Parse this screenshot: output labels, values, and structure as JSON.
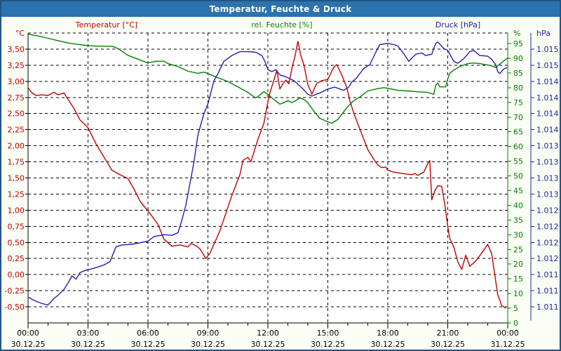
{
  "window": {
    "title": "Temperatur, Feuchte & Druck"
  },
  "header": {
    "temperature_label": "Temperatur [°C]",
    "humidity_label": "rel. Feuchte [%]",
    "pressure_label": "Druck [hPa]"
  },
  "colors": {
    "titlebar_bg": "#2c72ac",
    "titlebar_text": "#ffffff",
    "frame": "#215481",
    "page_bg": "#fbfef4",
    "plot_bg": "#ffffff",
    "grid": "#000000",
    "temperature": "#c00000",
    "humidity": "#008000",
    "pressure": "#2020b0",
    "tick_text": "#000000"
  },
  "chart_data": {
    "type": "line",
    "title": "Temperatur, Feuchte & Druck",
    "grid": {
      "style": "dashed",
      "horizontal_step_c": 0.25,
      "vertical_step_hours": 3
    },
    "x_axis": {
      "hours_span": [
        0,
        24
      ],
      "major_tick_every_hours": 3,
      "minor_tick_every_hours": 1,
      "ticks": [
        {
          "time": "00:00",
          "date": "30.12.25"
        },
        {
          "time": "03:00",
          "date": "30.12.25"
        },
        {
          "time": "06:00",
          "date": "30.12.25"
        },
        {
          "time": "09:00",
          "date": "30.12.25"
        },
        {
          "time": "12:00",
          "date": "30.12.25"
        },
        {
          "time": "15:00",
          "date": "30.12.25"
        },
        {
          "time": "18:00",
          "date": "30.12.25"
        },
        {
          "time": "21:00",
          "date": "30.12.25"
        },
        {
          "time": "00:00",
          "date": "31.12.25"
        }
      ]
    },
    "axes": {
      "temperature": {
        "side": "left",
        "unit_label": "°C",
        "range": [
          -0.75,
          3.75
        ],
        "tick_labels": [
          "3,50",
          "3,25",
          "3,00",
          "2,75",
          "2,50",
          "2,25",
          "2,00",
          "1,75",
          "1,50",
          "1,25",
          "1,00",
          "0,75",
          "0,50",
          "0,25",
          "0,00",
          "-0,25",
          "-0,50"
        ],
        "tick_values": [
          3.5,
          3.25,
          3.0,
          2.75,
          2.5,
          2.25,
          2.0,
          1.75,
          1.5,
          1.25,
          1.0,
          0.75,
          0.5,
          0.25,
          0.0,
          -0.25,
          -0.5
        ]
      },
      "humidity": {
        "side": "right",
        "unit_label": "%",
        "range": [
          0,
          98.6
        ],
        "tick_labels": [
          "95",
          "90",
          "85",
          "80",
          "75",
          "70",
          "65",
          "60",
          "55",
          "50",
          "45",
          "40",
          "35",
          "30",
          "25",
          "20",
          "15",
          "10",
          "5",
          "0"
        ],
        "tick_values": [
          95,
          90,
          85,
          80,
          75,
          70,
          65,
          60,
          55,
          50,
          45,
          40,
          35,
          30,
          25,
          20,
          15,
          10,
          5,
          0
        ]
      },
      "pressure": {
        "side": "right-outer",
        "unit_label": "hPa",
        "range": [
          1011.2,
          1015.7
        ],
        "tick_labels": [
          "1.015",
          "1.015",
          "1.014",
          "1.014",
          "1.014",
          "1.014",
          "1.013",
          "1.013",
          "1.013",
          "1.013",
          "1.012",
          "1.012",
          "1.012",
          "1.012",
          "1.011",
          "1.011",
          "1.011"
        ]
      }
    },
    "series": [
      {
        "name": "Temperatur",
        "unit": "°C",
        "axis": "temperature",
        "color_key": "temperature",
        "points": [
          [
            0,
            2.9
          ],
          [
            0.2,
            2.82
          ],
          [
            0.4,
            2.78
          ],
          [
            0.7,
            2.79
          ],
          [
            1,
            2.78
          ],
          [
            1.3,
            2.83
          ],
          [
            1.5,
            2.79
          ],
          [
            1.8,
            2.82
          ],
          [
            2,
            2.72
          ],
          [
            2.3,
            2.58
          ],
          [
            2.6,
            2.4
          ],
          [
            3,
            2.28
          ],
          [
            3.4,
            2.03
          ],
          [
            3.9,
            1.77
          ],
          [
            4.2,
            1.62
          ],
          [
            4.6,
            1.55
          ],
          [
            5,
            1.49
          ],
          [
            5.3,
            1.33
          ],
          [
            5.6,
            1.14
          ],
          [
            6.1,
            0.95
          ],
          [
            6.5,
            0.78
          ],
          [
            6.8,
            0.55
          ],
          [
            7.2,
            0.44
          ],
          [
            7.6,
            0.46
          ],
          [
            8,
            0.43
          ],
          [
            8.15,
            0.48
          ],
          [
            8.4,
            0.45
          ],
          [
            8.6,
            0.4
          ],
          [
            8.9,
            0.25
          ],
          [
            9.1,
            0.33
          ],
          [
            9.6,
            0.68
          ],
          [
            10.2,
            1.23
          ],
          [
            10.6,
            1.55
          ],
          [
            10.75,
            1.77
          ],
          [
            11,
            1.82
          ],
          [
            11.15,
            1.75
          ],
          [
            11.5,
            2.1
          ],
          [
            11.8,
            2.35
          ],
          [
            11.95,
            2.6
          ],
          [
            12.1,
            2.82
          ],
          [
            12.3,
            3.02
          ],
          [
            12.45,
            3.17
          ],
          [
            12.6,
            2.88
          ],
          [
            12.75,
            2.96
          ],
          [
            12.9,
            3.02
          ],
          [
            13.05,
            2.96
          ],
          [
            13.2,
            3.2
          ],
          [
            13.35,
            3.38
          ],
          [
            13.5,
            3.62
          ],
          [
            13.65,
            3.4
          ],
          [
            13.8,
            3.26
          ],
          [
            14,
            2.95
          ],
          [
            14.2,
            2.8
          ],
          [
            14.45,
            2.97
          ],
          [
            14.7,
            3.01
          ],
          [
            15,
            3.03
          ],
          [
            15.3,
            3.22
          ],
          [
            15.45,
            3.26
          ],
          [
            15.7,
            3.1
          ],
          [
            15.95,
            2.9
          ],
          [
            16.1,
            2.7
          ],
          [
            16.3,
            2.5
          ],
          [
            16.55,
            2.3
          ],
          [
            16.8,
            2.1
          ],
          [
            17,
            1.94
          ],
          [
            17.3,
            1.79
          ],
          [
            17.5,
            1.7
          ],
          [
            17.7,
            1.66
          ],
          [
            17.9,
            1.67
          ],
          [
            18,
            1.62
          ],
          [
            18.3,
            1.59
          ],
          [
            18.7,
            1.57
          ],
          [
            19.2,
            1.55
          ],
          [
            19.35,
            1.57
          ],
          [
            19.5,
            1.54
          ],
          [
            19.8,
            1.59
          ],
          [
            20,
            1.72
          ],
          [
            20.1,
            1.77
          ],
          [
            20.2,
            1.16
          ],
          [
            20.35,
            1.3
          ],
          [
            20.5,
            1.38
          ],
          [
            20.7,
            1.37
          ],
          [
            20.85,
            1.1
          ],
          [
            21,
            0.75
          ],
          [
            21.1,
            0.56
          ],
          [
            21.3,
            0.43
          ],
          [
            21.5,
            0.2
          ],
          [
            21.7,
            0.08
          ],
          [
            21.9,
            0.3
          ],
          [
            22.1,
            0.13
          ],
          [
            22.3,
            0.18
          ],
          [
            22.5,
            0.25
          ],
          [
            22.8,
            0.38
          ],
          [
            23,
            0.47
          ],
          [
            23.2,
            0.32
          ],
          [
            23.35,
            0
          ],
          [
            23.5,
            -0.31
          ],
          [
            23.7,
            -0.48
          ],
          [
            23.9,
            -0.52
          ]
        ]
      },
      {
        "name": "rel. Feuchte",
        "unit": "%",
        "axis": "humidity",
        "color_key": "humidity",
        "points": [
          [
            0,
            98.2
          ],
          [
            0.5,
            97.6
          ],
          [
            1,
            96.8
          ],
          [
            1.5,
            96
          ],
          [
            2,
            95.2
          ],
          [
            2.5,
            94.7
          ],
          [
            3,
            94.3
          ],
          [
            3.5,
            94.1
          ],
          [
            4.2,
            94.1
          ],
          [
            4.5,
            93.3
          ],
          [
            5,
            91
          ],
          [
            5.5,
            89.7
          ],
          [
            6,
            88.4
          ],
          [
            6.4,
            89
          ],
          [
            6.8,
            89
          ],
          [
            7,
            88.2
          ],
          [
            7.5,
            87.2
          ],
          [
            8,
            85.6
          ],
          [
            8.5,
            84.9
          ],
          [
            8.8,
            85.3
          ],
          [
            9,
            84.8
          ],
          [
            9.5,
            83.4
          ],
          [
            10,
            82.1
          ],
          [
            10.5,
            80.3
          ],
          [
            11,
            78.4
          ],
          [
            11.2,
            77.4
          ],
          [
            11.4,
            76.5
          ],
          [
            11.6,
            77.5
          ],
          [
            11.8,
            78.7
          ],
          [
            12,
            77.7
          ],
          [
            12.3,
            76
          ],
          [
            12.6,
            74.4
          ],
          [
            12.8,
            74.9
          ],
          [
            13,
            75.6
          ],
          [
            13.2,
            74.9
          ],
          [
            13.4,
            75.6
          ],
          [
            13.6,
            76.6
          ],
          [
            13.8,
            76
          ],
          [
            14,
            74.9
          ],
          [
            14.3,
            72
          ],
          [
            14.6,
            69.6
          ],
          [
            15,
            68.4
          ],
          [
            15.2,
            67.9
          ],
          [
            15.5,
            69.2
          ],
          [
            16,
            73.6
          ],
          [
            16.3,
            75.6
          ],
          [
            16.6,
            76.8
          ],
          [
            17,
            78.9
          ],
          [
            17.5,
            79.7
          ],
          [
            17.8,
            80
          ],
          [
            18,
            79.8
          ],
          [
            18.5,
            79.1
          ],
          [
            19,
            78.9
          ],
          [
            19.5,
            78.6
          ],
          [
            20,
            78.4
          ],
          [
            20.3,
            77.7
          ],
          [
            20.4,
            80.8
          ],
          [
            20.5,
            81.6
          ],
          [
            20.6,
            80.3
          ],
          [
            20.9,
            80.3
          ],
          [
            21,
            83
          ],
          [
            21.1,
            84.9
          ],
          [
            21.3,
            86
          ],
          [
            21.6,
            87.2
          ],
          [
            22,
            88.2
          ],
          [
            22.3,
            88.4
          ],
          [
            22.6,
            88.2
          ],
          [
            23,
            87.7
          ],
          [
            23.2,
            87.4
          ],
          [
            23.4,
            86.8
          ],
          [
            23.6,
            88
          ],
          [
            23.8,
            89.1
          ],
          [
            24,
            90.1
          ]
        ]
      },
      {
        "name": "Druck",
        "unit": "hPa",
        "axis": "pressure",
        "color_key": "pressure",
        "points": [
          [
            0,
            1011.6
          ],
          [
            0.3,
            1011.55
          ],
          [
            0.7,
            1011.5
          ],
          [
            1,
            1011.48
          ],
          [
            1.3,
            1011.58
          ],
          [
            1.5,
            1011.63
          ],
          [
            1.8,
            1011.72
          ],
          [
            2,
            1011.82
          ],
          [
            2.2,
            1011.93
          ],
          [
            2.4,
            1011.88
          ],
          [
            2.6,
            1011.98
          ],
          [
            2.9,
            1012.02
          ],
          [
            3.2,
            1012.04
          ],
          [
            3.5,
            1012.07
          ],
          [
            3.8,
            1012.1
          ],
          [
            4.1,
            1012.15
          ],
          [
            4.4,
            1012.38
          ],
          [
            4.7,
            1012.41
          ],
          [
            5.2,
            1012.42
          ],
          [
            5.7,
            1012.45
          ],
          [
            6,
            1012.47
          ],
          [
            6.3,
            1012.54
          ],
          [
            6.8,
            1012.57
          ],
          [
            7.2,
            1012.56
          ],
          [
            7.5,
            1012.6
          ],
          [
            7.7,
            1012.8
          ],
          [
            7.9,
            1013.03
          ],
          [
            8.1,
            1013.36
          ],
          [
            8.3,
            1013.7
          ],
          [
            8.5,
            1014.12
          ],
          [
            8.8,
            1014.45
          ],
          [
            9,
            1014.6
          ],
          [
            9.3,
            1014.96
          ],
          [
            9.5,
            1015.07
          ],
          [
            9.8,
            1015.26
          ],
          [
            10.2,
            1015.35
          ],
          [
            10.6,
            1015.41
          ],
          [
            11,
            1015.41
          ],
          [
            11.4,
            1015.4
          ],
          [
            11.7,
            1015.35
          ],
          [
            11.85,
            1015.26
          ],
          [
            12,
            1015.13
          ],
          [
            12.2,
            1015.1
          ],
          [
            12.4,
            1015.13
          ],
          [
            12.6,
            1015.05
          ],
          [
            12.9,
            1015.02
          ],
          [
            13.3,
            1014.96
          ],
          [
            13.7,
            1014.85
          ],
          [
            14,
            1014.75
          ],
          [
            14.2,
            1014.72
          ],
          [
            14.6,
            1014.77
          ],
          [
            15,
            1014.83
          ],
          [
            15.35,
            1014.86
          ],
          [
            15.6,
            1014.83
          ],
          [
            15.8,
            1014.81
          ],
          [
            16.05,
            1014.86
          ],
          [
            16.2,
            1014.94
          ],
          [
            16.4,
            1014.99
          ],
          [
            16.8,
            1015.15
          ],
          [
            17.1,
            1015.21
          ],
          [
            17.4,
            1015.4
          ],
          [
            17.6,
            1015.52
          ],
          [
            18,
            1015.54
          ],
          [
            18.3,
            1015.52
          ],
          [
            18.5,
            1015.5
          ],
          [
            18.8,
            1015.38
          ],
          [
            19.05,
            1015.26
          ],
          [
            19.4,
            1015.37
          ],
          [
            19.7,
            1015.39
          ],
          [
            19.9,
            1015.35
          ],
          [
            20.2,
            1015.37
          ],
          [
            20.4,
            1015.54
          ],
          [
            20.5,
            1015.56
          ],
          [
            20.8,
            1015.46
          ],
          [
            21,
            1015.43
          ],
          [
            21.3,
            1015.26
          ],
          [
            21.5,
            1015.23
          ],
          [
            21.8,
            1015.3
          ],
          [
            22.1,
            1015.41
          ],
          [
            22.3,
            1015.43
          ],
          [
            22.6,
            1015.35
          ],
          [
            23,
            1015.34
          ],
          [
            23.2,
            1015.29
          ],
          [
            23.4,
            1015.21
          ],
          [
            23.5,
            1015.1
          ],
          [
            23.6,
            1015.07
          ],
          [
            23.8,
            1015.14
          ],
          [
            23.95,
            1015.16
          ]
        ]
      }
    ]
  }
}
